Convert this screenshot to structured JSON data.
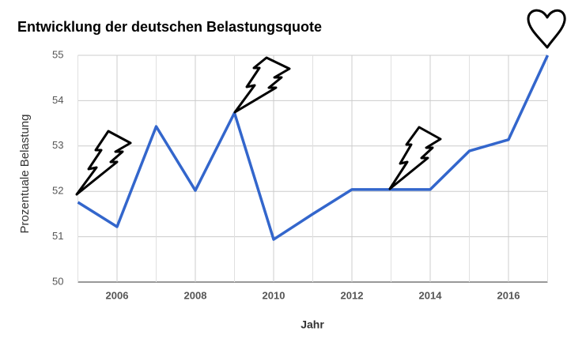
{
  "chart_data": {
    "type": "line",
    "title": "Entwicklung der deutschen Belastungsquote",
    "x_label": "Jahr",
    "y_label": "Prozentuale Belastung",
    "x": [
      2005,
      2006,
      2007,
      2008,
      2009,
      2010,
      2011,
      2012,
      2013,
      2014,
      2015,
      2016,
      2017
    ],
    "series": [
      {
        "name": "Belastungsquote",
        "color": "#3366cc",
        "values": [
          51.76,
          51.22,
          53.43,
          52.02,
          53.73,
          50.94,
          51.5,
          52.04,
          52.04,
          52.04,
          52.89,
          53.14,
          55
        ]
      }
    ],
    "xlim": [
      2005,
      2017
    ],
    "xticks": [
      2006,
      2008,
      2010,
      2012,
      2014,
      2016
    ],
    "ylim": [
      50,
      55
    ],
    "yticks": [
      50,
      51,
      52,
      53,
      54,
      55
    ],
    "grid": true
  }
}
